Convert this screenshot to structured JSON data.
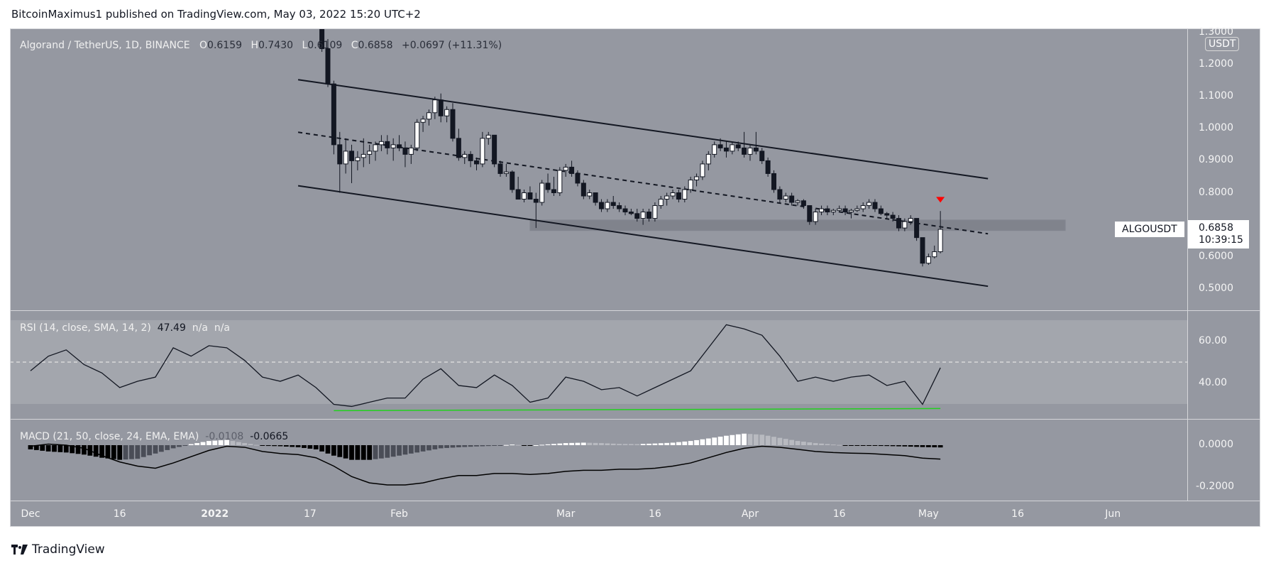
{
  "header": {
    "published": "BitcoinMaximus1 published on TradingView.com, May 03, 2022 15:20 UTC+2"
  },
  "legend": {
    "symbol": "Algorand / TetherUS, 1D, BINANCE",
    "o_label": "O",
    "o": "0.6159",
    "h_label": "H",
    "h": "0.7430",
    "l_label": "L",
    "l": "0.6109",
    "c_label": "C",
    "c": "0.6858",
    "change": "+0.0697 (+11.31%)"
  },
  "price_axis": {
    "currency": "USDT",
    "ticks": [
      "1.3000",
      "1.2000",
      "1.1000",
      "1.0000",
      "0.9000",
      "0.8000",
      "0.6000",
      "0.5000"
    ]
  },
  "last_price": {
    "symbol": "ALGOUSDT",
    "price": "0.6858",
    "countdown": "10:39:15"
  },
  "rsi": {
    "label": "RSI (14, close, SMA, 14, 2)",
    "value": "47.49",
    "na1": "n/a",
    "na2": "n/a",
    "ticks": [
      "60.00",
      "40.00"
    ]
  },
  "macd": {
    "label": "MACD (21, 50, close, 24, EMA, EMA)",
    "hist": "-0.0108",
    "macd": "-0.0665",
    "ticks": [
      "0.0000",
      "-0.2000"
    ]
  },
  "time_axis": [
    {
      "label": "Dec",
      "date": "2021-12-01"
    },
    {
      "label": "16",
      "date": "2021-12-16"
    },
    {
      "label": "2022",
      "date": "2022-01-01"
    },
    {
      "label": "17",
      "date": "2022-01-17"
    },
    {
      "label": "Feb",
      "date": "2022-02-01"
    },
    {
      "label": "Mar",
      "date": "2022-03-01"
    },
    {
      "label": "16",
      "date": "2022-03-16"
    },
    {
      "label": "Apr",
      "date": "2022-04-01"
    },
    {
      "label": "16",
      "date": "2022-04-16"
    },
    {
      "label": "May",
      "date": "2022-05-01"
    },
    {
      "label": "16",
      "date": "2022-05-16"
    },
    {
      "label": "Jun",
      "date": "2022-06-01"
    }
  ],
  "brand": {
    "name": "TradingView"
  },
  "colors": {
    "background": "#9598a1",
    "up": "#ffffff",
    "down": "#131722",
    "rsi_band": "#a3a6ad",
    "divergence": "#22d11e",
    "marker": "#ff0000"
  },
  "chart_data": [
    {
      "type": "candlestick",
      "title": "Algorand / TetherUS, 1D, BINANCE",
      "ylim": [
        0.45,
        1.31
      ],
      "xlim": [
        "2021-12-01",
        "2022-06-10"
      ],
      "candles_fields": [
        "date",
        "open",
        "high",
        "low",
        "close"
      ],
      "candles": [
        [
          "2022-01-19",
          1.36,
          1.38,
          1.24,
          1.25
        ],
        [
          "2022-01-20",
          1.25,
          1.28,
          1.13,
          1.14
        ],
        [
          "2022-01-21",
          1.14,
          1.15,
          0.92,
          0.95
        ],
        [
          "2022-01-22",
          0.95,
          0.99,
          0.8,
          0.89
        ],
        [
          "2022-01-23",
          0.89,
          0.97,
          0.86,
          0.93
        ],
        [
          "2022-01-24",
          0.93,
          0.95,
          0.83,
          0.9
        ],
        [
          "2022-01-25",
          0.9,
          0.93,
          0.87,
          0.91
        ],
        [
          "2022-01-26",
          0.91,
          0.97,
          0.88,
          0.92
        ],
        [
          "2022-01-27",
          0.92,
          0.95,
          0.89,
          0.93
        ],
        [
          "2022-01-28",
          0.93,
          0.96,
          0.9,
          0.95
        ],
        [
          "2022-01-29",
          0.95,
          0.98,
          0.93,
          0.96
        ],
        [
          "2022-01-30",
          0.96,
          0.98,
          0.92,
          0.94
        ],
        [
          "2022-01-31",
          0.94,
          0.97,
          0.9,
          0.95
        ],
        [
          "2022-02-01",
          0.95,
          0.98,
          0.93,
          0.94
        ],
        [
          "2022-02-02",
          0.94,
          0.96,
          0.88,
          0.92
        ],
        [
          "2022-02-03",
          0.92,
          0.95,
          0.89,
          0.94
        ],
        [
          "2022-02-04",
          0.94,
          1.03,
          0.93,
          1.02
        ],
        [
          "2022-02-05",
          1.02,
          1.04,
          0.99,
          1.03
        ],
        [
          "2022-02-06",
          1.03,
          1.06,
          1.01,
          1.05
        ],
        [
          "2022-02-07",
          1.05,
          1.1,
          1.03,
          1.09
        ],
        [
          "2022-02-08",
          1.09,
          1.11,
          1.02,
          1.04
        ],
        [
          "2022-02-09",
          1.04,
          1.07,
          1.02,
          1.06
        ],
        [
          "2022-02-10",
          1.06,
          1.08,
          0.96,
          0.97
        ],
        [
          "2022-02-11",
          0.97,
          1.0,
          0.9,
          0.91
        ],
        [
          "2022-02-12",
          0.91,
          0.93,
          0.89,
          0.92
        ],
        [
          "2022-02-13",
          0.92,
          0.93,
          0.88,
          0.9
        ],
        [
          "2022-02-14",
          0.9,
          0.91,
          0.87,
          0.89
        ],
        [
          "2022-02-15",
          0.89,
          0.99,
          0.88,
          0.97
        ],
        [
          "2022-02-16",
          0.97,
          0.99,
          0.95,
          0.98
        ],
        [
          "2022-02-17",
          0.98,
          0.98,
          0.88,
          0.89
        ],
        [
          "2022-02-18",
          0.89,
          0.9,
          0.85,
          0.86
        ],
        [
          "2022-02-19",
          0.86,
          0.89,
          0.85,
          0.865
        ],
        [
          "2022-02-20",
          0.865,
          0.87,
          0.8,
          0.81
        ],
        [
          "2022-02-21",
          0.81,
          0.85,
          0.78,
          0.78
        ],
        [
          "2022-02-22",
          0.78,
          0.81,
          0.77,
          0.8
        ],
        [
          "2022-02-23",
          0.8,
          0.82,
          0.78,
          0.78
        ],
        [
          "2022-02-24",
          0.78,
          0.8,
          0.69,
          0.77
        ],
        [
          "2022-02-25",
          0.77,
          0.84,
          0.76,
          0.83
        ],
        [
          "2022-02-26",
          0.83,
          0.86,
          0.8,
          0.81
        ],
        [
          "2022-02-27",
          0.81,
          0.85,
          0.79,
          0.8
        ],
        [
          "2022-02-28",
          0.8,
          0.88,
          0.79,
          0.87
        ],
        [
          "2022-03-01",
          0.87,
          0.89,
          0.85,
          0.88
        ],
        [
          "2022-03-02",
          0.88,
          0.9,
          0.85,
          0.86
        ],
        [
          "2022-03-03",
          0.86,
          0.87,
          0.82,
          0.83
        ],
        [
          "2022-03-04",
          0.83,
          0.84,
          0.78,
          0.79
        ],
        [
          "2022-03-05",
          0.79,
          0.81,
          0.78,
          0.8
        ],
        [
          "2022-03-06",
          0.8,
          0.8,
          0.76,
          0.77
        ],
        [
          "2022-03-07",
          0.77,
          0.78,
          0.74,
          0.75
        ],
        [
          "2022-03-08",
          0.75,
          0.78,
          0.74,
          0.77
        ],
        [
          "2022-03-09",
          0.77,
          0.79,
          0.75,
          0.76
        ],
        [
          "2022-03-10",
          0.76,
          0.77,
          0.74,
          0.75
        ],
        [
          "2022-03-11",
          0.75,
          0.76,
          0.73,
          0.74
        ],
        [
          "2022-03-12",
          0.74,
          0.75,
          0.73,
          0.735
        ],
        [
          "2022-03-13",
          0.735,
          0.75,
          0.71,
          0.72
        ],
        [
          "2022-03-14",
          0.72,
          0.75,
          0.7,
          0.74
        ],
        [
          "2022-03-15",
          0.74,
          0.75,
          0.71,
          0.72
        ],
        [
          "2022-03-16",
          0.72,
          0.77,
          0.71,
          0.76
        ],
        [
          "2022-03-17",
          0.76,
          0.79,
          0.75,
          0.78
        ],
        [
          "2022-03-18",
          0.78,
          0.8,
          0.76,
          0.79
        ],
        [
          "2022-03-19",
          0.79,
          0.81,
          0.78,
          0.8
        ],
        [
          "2022-03-20",
          0.8,
          0.81,
          0.77,
          0.78
        ],
        [
          "2022-03-21",
          0.78,
          0.82,
          0.77,
          0.81
        ],
        [
          "2022-03-22",
          0.81,
          0.85,
          0.8,
          0.84
        ],
        [
          "2022-03-23",
          0.84,
          0.86,
          0.82,
          0.85
        ],
        [
          "2022-03-24",
          0.85,
          0.9,
          0.84,
          0.89
        ],
        [
          "2022-03-25",
          0.89,
          0.93,
          0.87,
          0.92
        ],
        [
          "2022-03-26",
          0.92,
          0.96,
          0.91,
          0.95
        ],
        [
          "2022-03-27",
          0.95,
          0.97,
          0.93,
          0.94
        ],
        [
          "2022-03-28",
          0.94,
          0.96,
          0.91,
          0.93
        ],
        [
          "2022-03-29",
          0.93,
          0.96,
          0.92,
          0.95
        ],
        [
          "2022-03-30",
          0.95,
          0.96,
          0.93,
          0.94
        ],
        [
          "2022-03-31",
          0.94,
          0.99,
          0.91,
          0.92
        ],
        [
          "2022-04-01",
          0.92,
          0.95,
          0.9,
          0.94
        ],
        [
          "2022-04-02",
          0.94,
          0.99,
          0.92,
          0.93
        ],
        [
          "2022-04-03",
          0.93,
          0.94,
          0.89,
          0.9
        ],
        [
          "2022-04-04",
          0.9,
          0.91,
          0.85,
          0.86
        ],
        [
          "2022-04-05",
          0.86,
          0.87,
          0.8,
          0.81
        ],
        [
          "2022-04-06",
          0.81,
          0.82,
          0.77,
          0.78
        ],
        [
          "2022-04-07",
          0.78,
          0.8,
          0.77,
          0.79
        ],
        [
          "2022-04-08",
          0.79,
          0.8,
          0.76,
          0.77
        ],
        [
          "2022-04-09",
          0.77,
          0.78,
          0.76,
          0.775
        ],
        [
          "2022-04-10",
          0.775,
          0.78,
          0.75,
          0.76
        ],
        [
          "2022-04-11",
          0.76,
          0.76,
          0.7,
          0.71
        ],
        [
          "2022-04-12",
          0.71,
          0.75,
          0.7,
          0.74
        ],
        [
          "2022-04-13",
          0.74,
          0.76,
          0.73,
          0.75
        ],
        [
          "2022-04-14",
          0.75,
          0.76,
          0.73,
          0.74
        ],
        [
          "2022-04-15",
          0.74,
          0.75,
          0.73,
          0.745
        ],
        [
          "2022-04-16",
          0.745,
          0.76,
          0.74,
          0.75
        ],
        [
          "2022-04-17",
          0.75,
          0.76,
          0.73,
          0.74
        ],
        [
          "2022-04-18",
          0.74,
          0.75,
          0.72,
          0.745
        ],
        [
          "2022-04-19",
          0.745,
          0.76,
          0.74,
          0.75
        ],
        [
          "2022-04-20",
          0.75,
          0.77,
          0.74,
          0.76
        ],
        [
          "2022-04-21",
          0.76,
          0.78,
          0.75,
          0.77
        ],
        [
          "2022-04-22",
          0.77,
          0.78,
          0.74,
          0.75
        ],
        [
          "2022-04-23",
          0.75,
          0.76,
          0.73,
          0.735
        ],
        [
          "2022-04-24",
          0.735,
          0.74,
          0.72,
          0.73
        ],
        [
          "2022-04-25",
          0.73,
          0.74,
          0.71,
          0.72
        ],
        [
          "2022-04-26",
          0.72,
          0.73,
          0.68,
          0.69
        ],
        [
          "2022-04-27",
          0.69,
          0.72,
          0.68,
          0.71
        ],
        [
          "2022-04-28",
          0.71,
          0.73,
          0.7,
          0.72
        ],
        [
          "2022-04-29",
          0.72,
          0.72,
          0.65,
          0.66
        ],
        [
          "2022-04-30",
          0.66,
          0.66,
          0.57,
          0.58
        ],
        [
          "2022-05-01",
          0.58,
          0.61,
          0.575,
          0.6
        ],
        [
          "2022-05-02",
          0.6,
          0.635,
          0.595,
          0.6159
        ],
        [
          "2022-05-03",
          0.6159,
          0.743,
          0.6109,
          0.6858
        ]
      ],
      "annotations": {
        "channel_upper": [
          [
            "2022-01-15",
            1.153
          ],
          [
            "2022-05-11",
            0.844
          ]
        ],
        "channel_middle": [
          [
            "2022-01-15",
            0.989
          ],
          [
            "2022-05-11",
            0.672
          ]
        ],
        "channel_lower": [
          [
            "2022-01-15",
            0.822
          ],
          [
            "2022-05-11",
            0.508
          ]
        ],
        "support_zone": {
          "from": "2022-02-23",
          "to": "2022-05-24",
          "low": 0.682,
          "high": 0.715
        },
        "marker_down": [
          "2022-05-03",
          0.778
        ]
      }
    },
    {
      "type": "line",
      "title": "RSI (14, close, SMA, 14, 2)",
      "ylim": [
        20,
        75
      ],
      "band": [
        30,
        70
      ],
      "midline": 50,
      "x": [
        "2021-12-01",
        "2021-12-04",
        "2021-12-07",
        "2021-12-10",
        "2021-12-13",
        "2021-12-16",
        "2021-12-19",
        "2021-12-22",
        "2021-12-25",
        "2021-12-28",
        "2021-12-31",
        "2022-01-03",
        "2022-01-06",
        "2022-01-09",
        "2022-01-12",
        "2022-01-15",
        "2022-01-18",
        "2022-01-21",
        "2022-01-24",
        "2022-01-27",
        "2022-01-30",
        "2022-02-02",
        "2022-02-05",
        "2022-02-08",
        "2022-02-11",
        "2022-02-14",
        "2022-02-17",
        "2022-02-20",
        "2022-02-23",
        "2022-02-26",
        "2022-03-01",
        "2022-03-04",
        "2022-03-07",
        "2022-03-10",
        "2022-03-13",
        "2022-03-16",
        "2022-03-19",
        "2022-03-22",
        "2022-03-25",
        "2022-03-28",
        "2022-03-31",
        "2022-04-03",
        "2022-04-06",
        "2022-04-09",
        "2022-04-12",
        "2022-04-15",
        "2022-04-18",
        "2022-04-21",
        "2022-04-24",
        "2022-04-27",
        "2022-04-30",
        "2022-05-03"
      ],
      "values": [
        46,
        53,
        56,
        49,
        45,
        38,
        41,
        43,
        57,
        53,
        58,
        57,
        51,
        43,
        41,
        44,
        38,
        30,
        29,
        31,
        33,
        33,
        42,
        47,
        39,
        38,
        44,
        39,
        31,
        33,
        43,
        41,
        37,
        38,
        34,
        38,
        42,
        46,
        57,
        68,
        66,
        63,
        53,
        41,
        43,
        41,
        43,
        44,
        39,
        41,
        30,
        47.49
      ],
      "divergence_line": [
        [
          "2022-01-21",
          27
        ],
        [
          "2022-05-03",
          28
        ]
      ]
    },
    {
      "type": "bar+line",
      "title": "MACD (21, 50, close, 24, EMA, EMA)",
      "ylim": [
        -0.21,
        0.04
      ],
      "x_ref": "same as RSI x",
      "histogram": [
        -0.02,
        -0.03,
        -0.035,
        -0.045,
        -0.06,
        -0.07,
        -0.065,
        -0.04,
        -0.015,
        0.005,
        0.02,
        0.025,
        0.01,
        -0.003,
        -0.005,
        -0.01,
        -0.02,
        -0.05,
        -0.07,
        -0.07,
        -0.06,
        -0.045,
        -0.03,
        -0.015,
        -0.01,
        -0.006,
        -0.003,
        0.003,
        -0.002,
        0.004,
        0.01,
        0.012,
        0.01,
        0.006,
        0.005,
        0.008,
        0.012,
        0.02,
        0.032,
        0.045,
        0.055,
        0.05,
        0.035,
        0.02,
        0.01,
        0.003,
        -0.002,
        -0.003,
        -0.004,
        -0.006,
        -0.009,
        -0.0108
      ],
      "macd_line": [
        -0.005,
        0.005,
        0.0,
        -0.015,
        -0.05,
        -0.08,
        -0.1,
        -0.11,
        -0.085,
        -0.055,
        -0.025,
        -0.005,
        -0.01,
        -0.03,
        -0.04,
        -0.045,
        -0.06,
        -0.1,
        -0.15,
        -0.18,
        -0.19,
        -0.19,
        -0.18,
        -0.16,
        -0.145,
        -0.145,
        -0.135,
        -0.135,
        -0.14,
        -0.135,
        -0.125,
        -0.12,
        -0.12,
        -0.115,
        -0.115,
        -0.11,
        -0.1,
        -0.085,
        -0.06,
        -0.035,
        -0.015,
        -0.005,
        -0.01,
        -0.02,
        -0.03,
        -0.035,
        -0.038,
        -0.04,
        -0.045,
        -0.05,
        -0.062,
        -0.0665
      ]
    }
  ]
}
